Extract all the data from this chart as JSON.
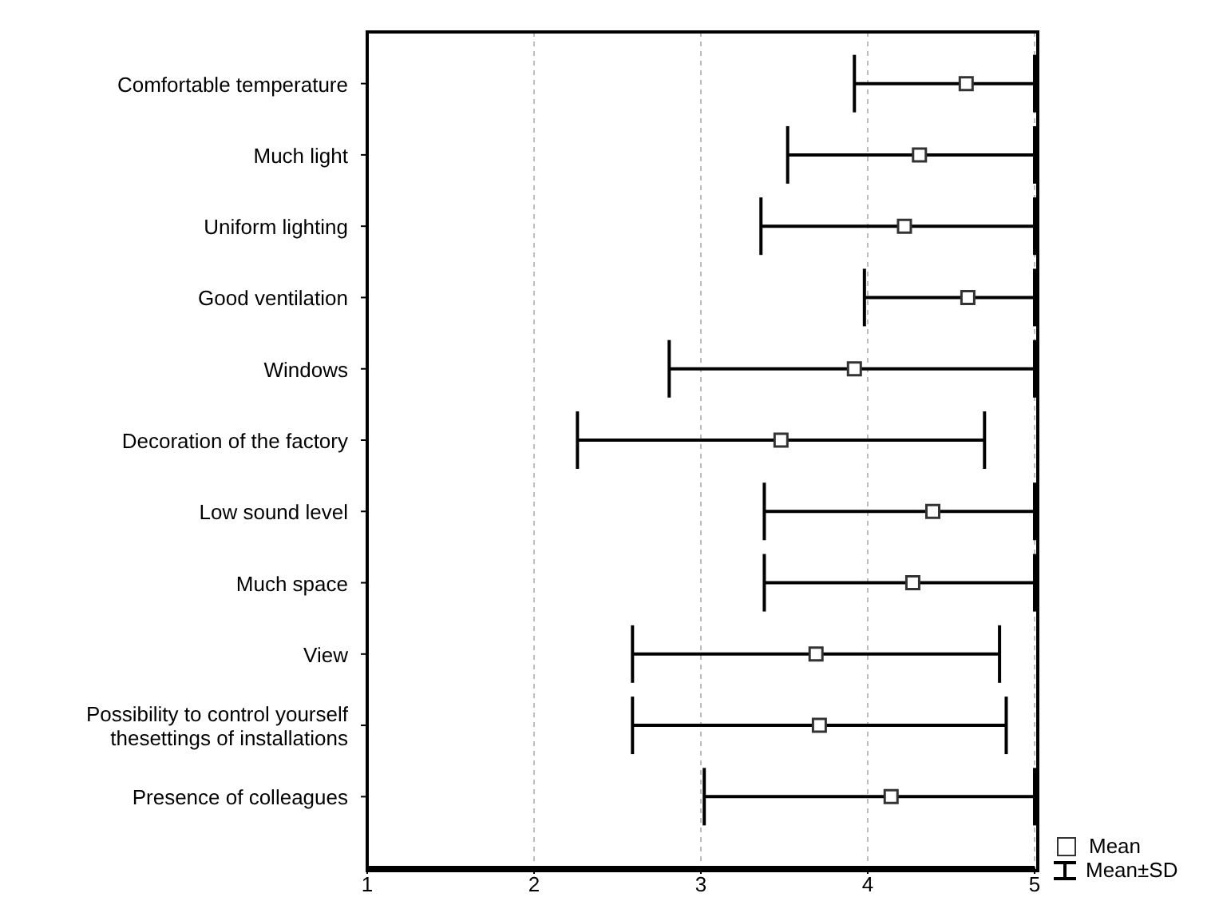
{
  "chart_data": {
    "type": "scatter",
    "orientation": "horizontal",
    "categories": [
      "Comfortable temperature",
      "Much light",
      "Uniform lighting",
      "Good ventilation",
      "Windows",
      "Decoration of the factory",
      "Low sound level",
      "Much space",
      "View",
      "Possibility to control yourself thesettings of installations",
      "Presence of colleagues"
    ],
    "series": [
      {
        "name": "Mean",
        "color": "#ffffff",
        "values": [
          4.59,
          4.31,
          4.22,
          4.6,
          3.92,
          3.48,
          4.39,
          4.27,
          3.69,
          3.71,
          4.14
        ],
        "errors": [
          [
            3.92,
            5
          ],
          [
            3.52,
            5
          ],
          [
            3.36,
            5
          ],
          [
            3.98,
            5
          ],
          [
            2.81,
            5
          ],
          1.22,
          [
            3.38,
            5
          ],
          [
            3.38,
            5
          ],
          1.1,
          1.12,
          [
            3.02,
            5
          ]
        ]
      }
    ],
    "xlim": [
      1,
      5
    ],
    "xticks": [
      1,
      2,
      3,
      4,
      5
    ],
    "grid": "x",
    "marker": "square",
    "legend": "bottom right",
    "annotations": [
      "Mean±SD"
    ]
  }
}
